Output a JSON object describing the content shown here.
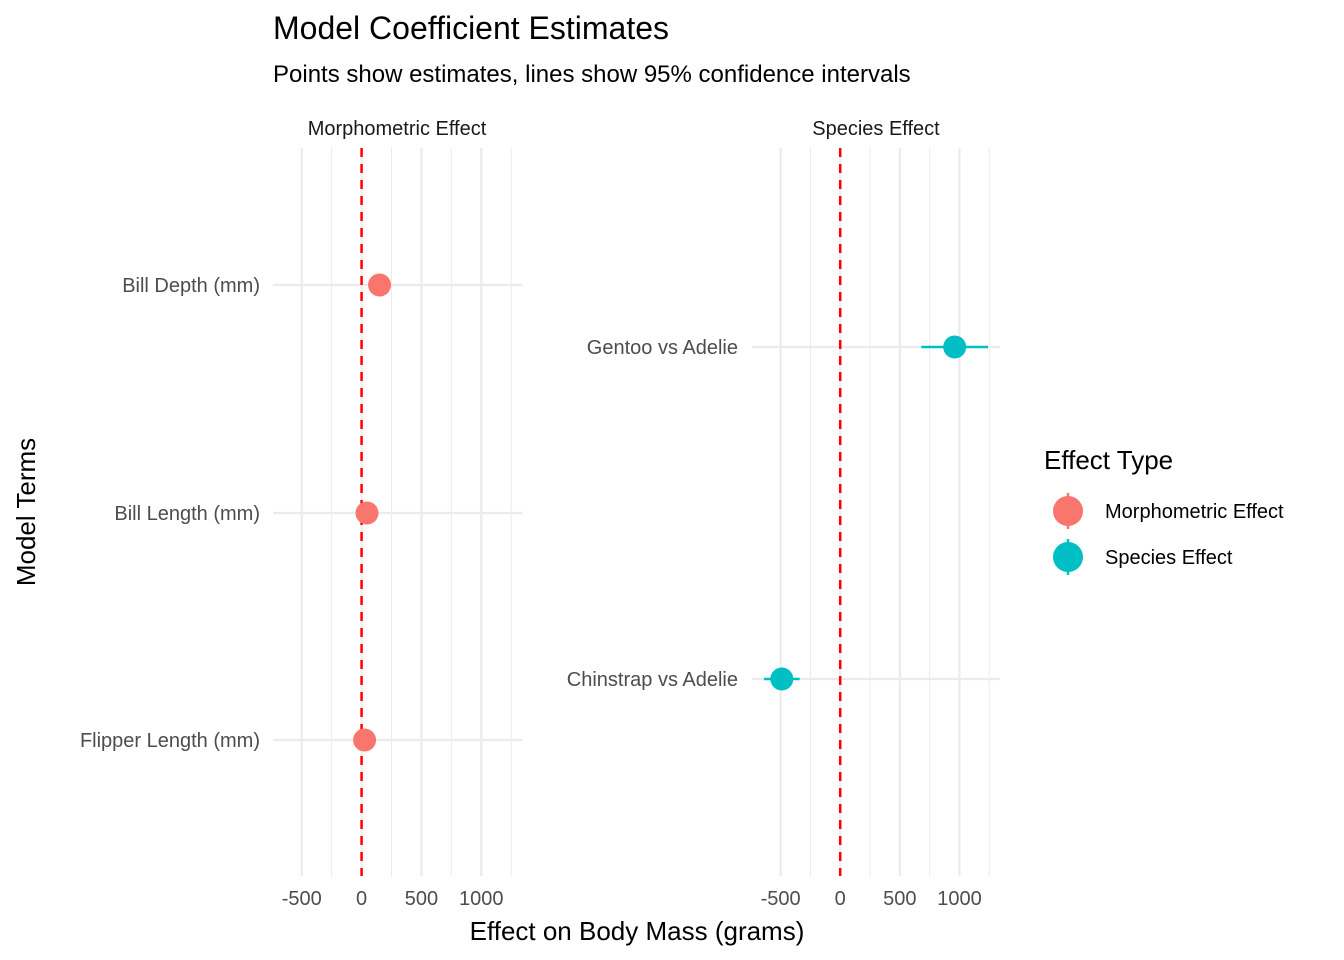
{
  "chart_data": {
    "type": "scatter",
    "title": "Model Coefficient Estimates",
    "subtitle": "Points show estimates, lines show 95% confidence intervals",
    "xlabel": "Effect on Body Mass (grams)",
    "ylabel": "Model Terms",
    "xlim": [
      -740,
      1340
    ],
    "x_ticks": [
      -500,
      0,
      500,
      1000
    ],
    "x_tick_labels": [
      "-500",
      "0",
      "500",
      "1000"
    ],
    "reference_line": {
      "x": 0,
      "color": "#FF0000",
      "style": "dashed"
    },
    "grid": true,
    "legend": {
      "title": "Effect Type",
      "position": "right",
      "entries": [
        {
          "label": "Morphometric Effect",
          "color": "#F8766D"
        },
        {
          "label": "Species Effect",
          "color": "#00BFC4"
        }
      ]
    },
    "facets": [
      {
        "name": "Morphometric Effect",
        "color": "#F8766D",
        "terms": [
          {
            "term": "Bill Depth (mm)",
            "estimate": 150,
            "ci_low": 120,
            "ci_high": 180
          },
          {
            "term": "Bill Length (mm)",
            "estimate": 45,
            "ci_low": 30,
            "ci_high": 60
          },
          {
            "term": "Flipper Length (mm)",
            "estimate": 25,
            "ci_low": 18,
            "ci_high": 32
          }
        ]
      },
      {
        "name": "Species Effect",
        "color": "#00BFC4",
        "terms": [
          {
            "term": "Gentoo vs Adelie",
            "estimate": 960,
            "ci_low": 680,
            "ci_high": 1240
          },
          {
            "term": "Chinstrap vs Adelie",
            "estimate": -490,
            "ci_low": -640,
            "ci_high": -340
          }
        ]
      }
    ]
  }
}
